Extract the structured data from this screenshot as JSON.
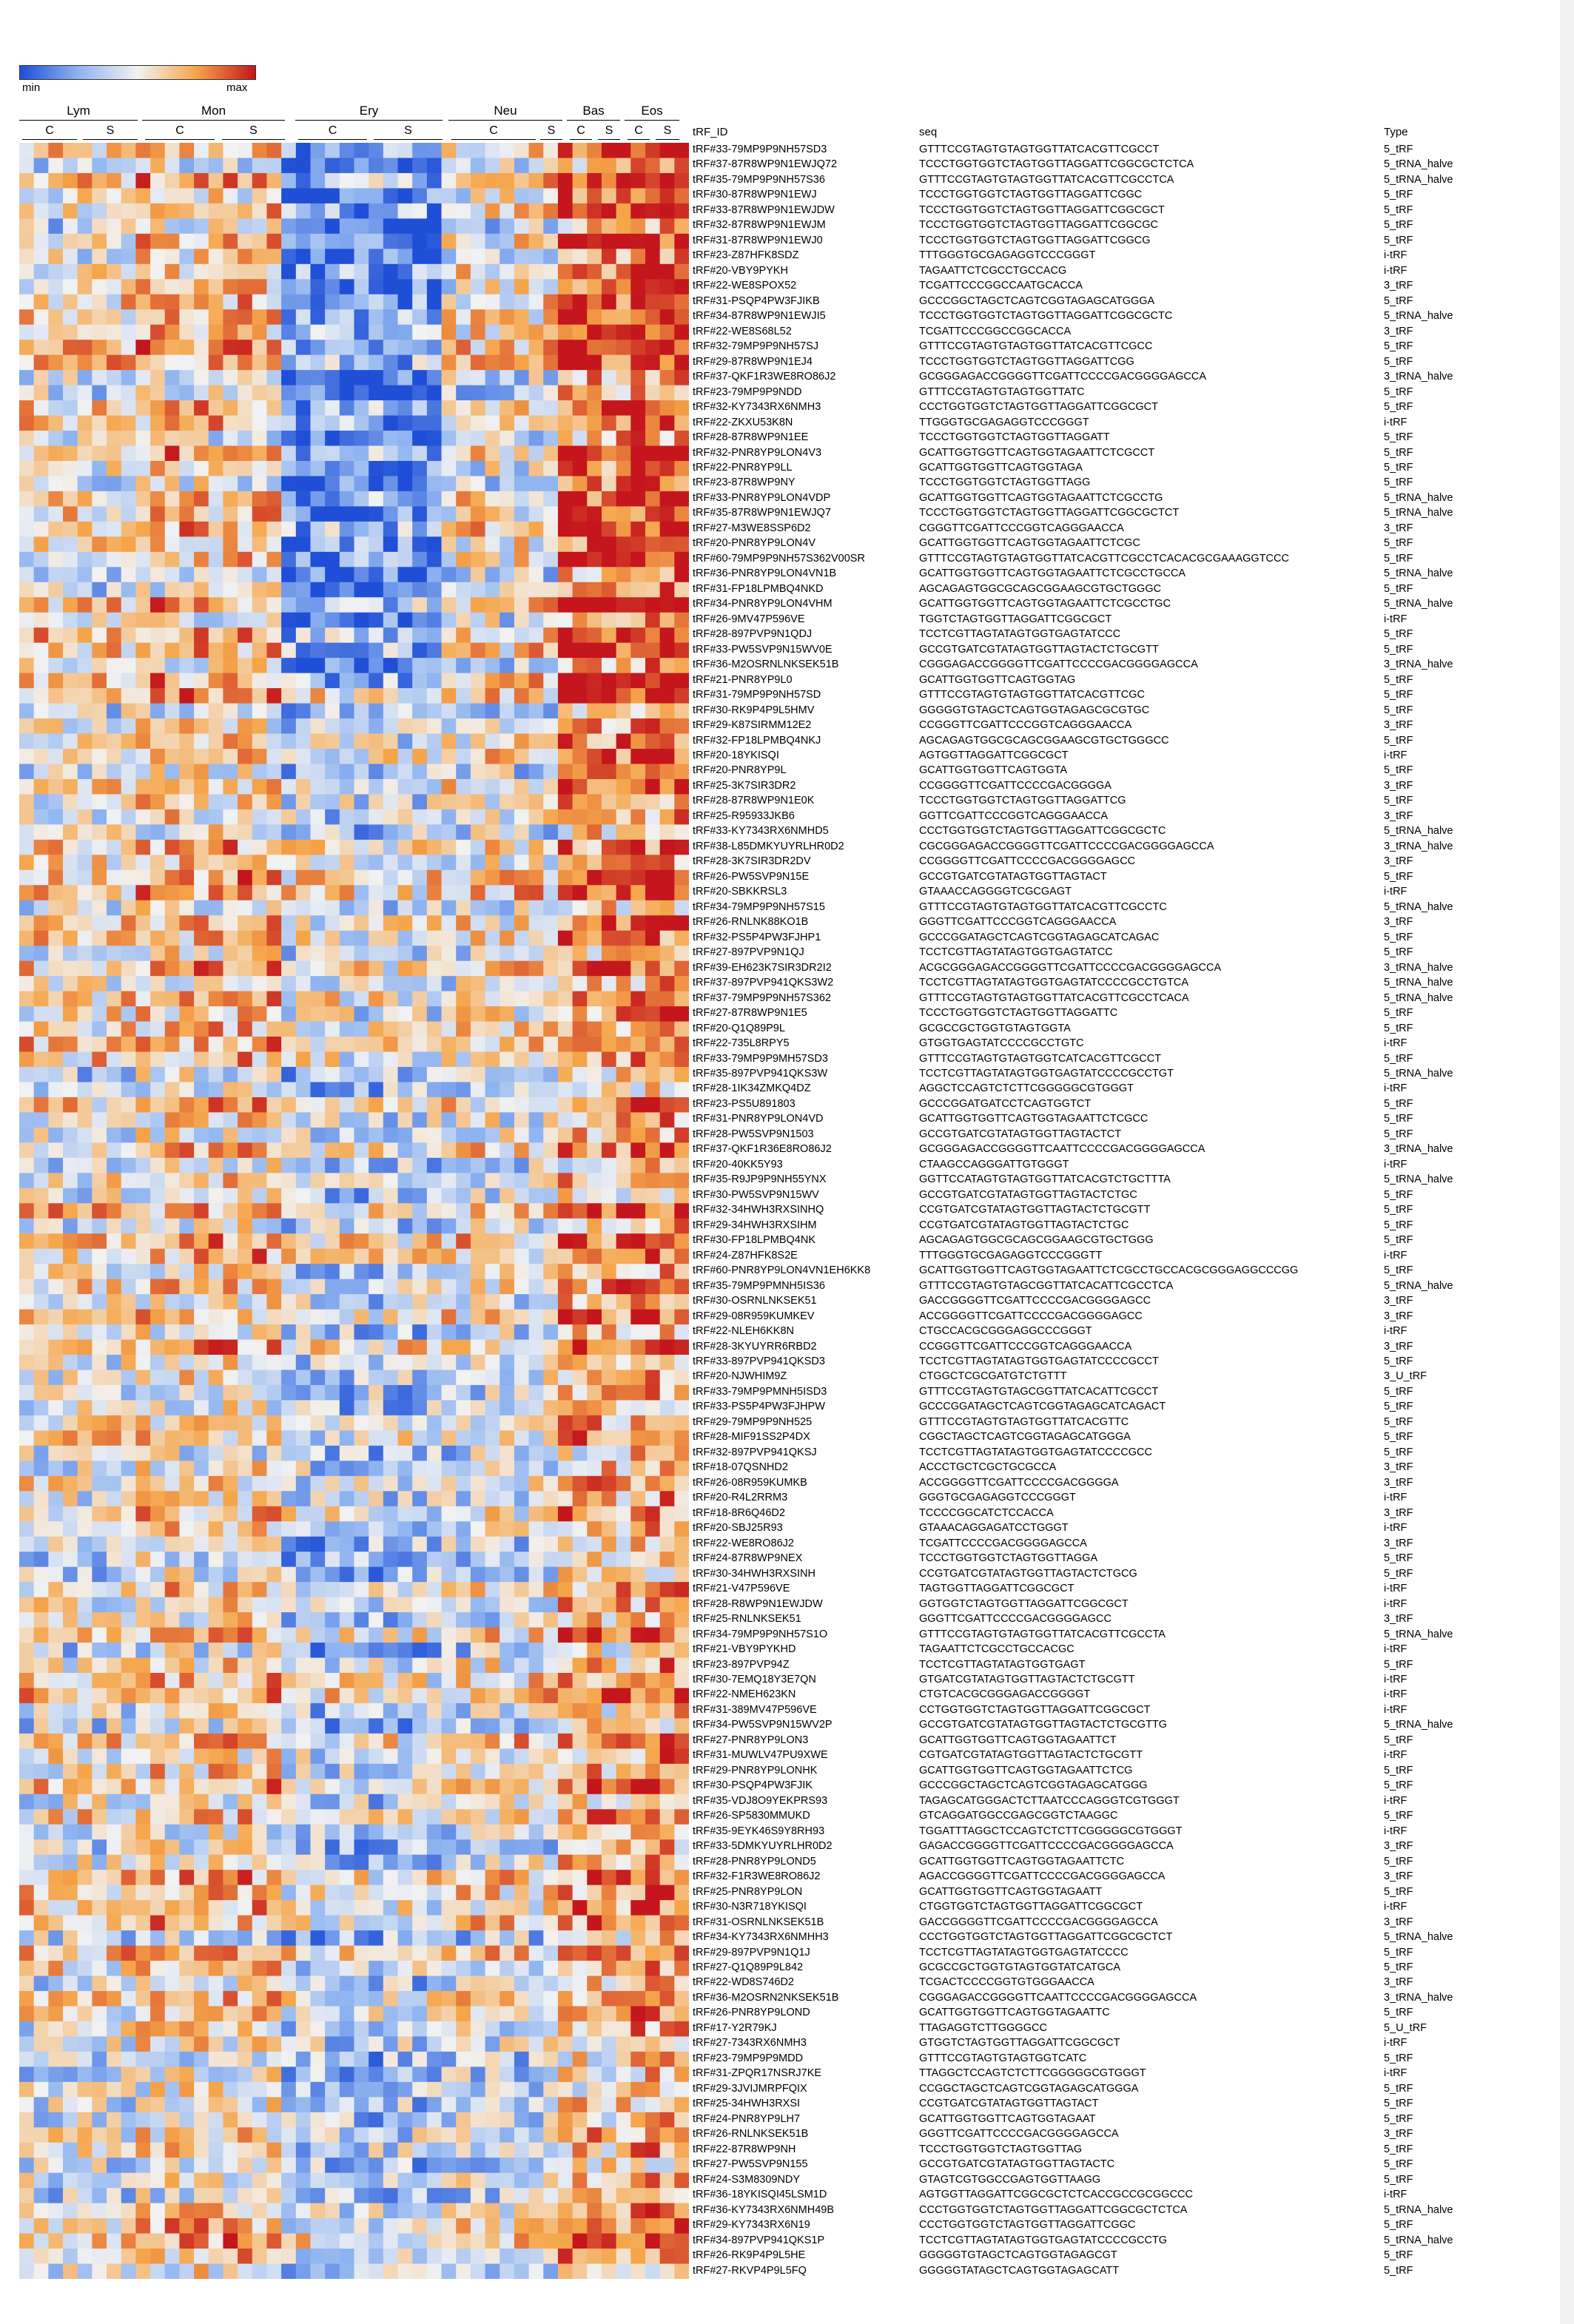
{
  "chart_data": {
    "type": "heatmap",
    "title": "",
    "legend": {
      "min_label": "min",
      "max_label": "max",
      "colors": [
        "#1f4fd6",
        "#8fb4f0",
        "#f2f2f2",
        "#f5a54a",
        "#c4161c"
      ]
    },
    "groups": [
      {
        "label": "Lym",
        "subgroups": [
          "C",
          "S"
        ]
      },
      {
        "label": "Mon",
        "subgroups": [
          "C",
          "S"
        ]
      },
      {
        "label": "Ery",
        "subgroups": [
          "C",
          "S"
        ]
      },
      {
        "label": "Neu",
        "subgroups": [
          "C",
          "S"
        ]
      },
      {
        "label": "Bas",
        "subgroups": [
          "C",
          "S"
        ]
      },
      {
        "label": "Eos",
        "subgroups": [
          "C",
          "S"
        ]
      }
    ],
    "columns": {
      "id": "tRF_ID",
      "seq": "seq",
      "type": "Type"
    },
    "rows": [
      {
        "id": "tRF#33-79MP9P9NH57SD3",
        "seq": "GTTTCCGTAGTGTAGTGGTTATCACGTTCGCCT",
        "type": "5_tRF"
      },
      {
        "id": "tRF#37-87R8WP9N1EWJQ72",
        "seq": "TCCCTGGTGGTCTAGTGGTTAGGATTCGGCGCTCTCA",
        "type": "5_tRNA_halve"
      },
      {
        "id": "tRF#35-79MP9P9NH57S36",
        "seq": "GTTTCCGTAGTGTAGTGGTTATCACGTTCGCCTCA",
        "type": "5_tRNA_halve"
      },
      {
        "id": "tRF#30-87R8WP9N1EWJ",
        "seq": "TCCCTGGTGGTCTAGTGGTTAGGATTCGGC",
        "type": "5_tRF"
      },
      {
        "id": "tRF#33-87R8WP9N1EWJDW",
        "seq": "TCCCTGGTGGTCTAGTGGTTAGGATTCGGCGCT",
        "type": "5_tRF"
      },
      {
        "id": "tRF#32-87R8WP9N1EWJM",
        "seq": "TCCCTGGTGGTCTAGTGGTTAGGATTCGGCGC",
        "type": "5_tRF"
      },
      {
        "id": "tRF#31-87R8WP9N1EWJ0",
        "seq": "TCCCTGGTGGTCTAGTGGTTAGGATTCGGCG",
        "type": "5_tRF"
      },
      {
        "id": "tRF#23-Z87HFK8SDZ",
        "seq": "TTTGGGTGCGAGAGGTCCCGGGT",
        "type": "i-tRF"
      },
      {
        "id": "tRF#20-VBY9PYKH",
        "seq": "TAGAATTCTCGCCTGCCACG",
        "type": "i-tRF"
      },
      {
        "id": "tRF#22-WE8SPOX52",
        "seq": "TCGATTCCCGGCCAATGCACCA",
        "type": "3_tRF"
      },
      {
        "id": "tRF#31-PSQP4PW3FJIKB",
        "seq": "GCCCGGCTAGCTCAGTCGGTAGAGCATGGGA",
        "type": "5_tRF"
      },
      {
        "id": "tRF#34-87R8WP9N1EWJI5",
        "seq": "TCCCTGGTGGTCTAGTGGTTAGGATTCGGCGCTC",
        "type": "5_tRNA_halve"
      },
      {
        "id": "tRF#22-WE8S68L52",
        "seq": "TCGATTCCCGGCCGGCACCA",
        "type": "3_tRF"
      },
      {
        "id": "tRF#32-79MP9P9NH57SJ",
        "seq": "GTTTCCGTAGTGTAGTGGTTATCACGTTCGCC",
        "type": "5_tRF"
      },
      {
        "id": "tRF#29-87R8WP9N1EJ4",
        "seq": "TCCCTGGTGGTCTAGTGGTTAGGATTCGG",
        "type": "5_tRF"
      },
      {
        "id": "tRF#37-QKF1R3WE8RO86J2",
        "seq": "GCGGGAGACCGGGGTTCGATTCCCCGACGGGGAGCCA",
        "type": "3_tRNA_halve"
      },
      {
        "id": "tRF#23-79MP9P9NDD",
        "seq": "GTTTCCGTAGTGTAGTGGTTATC",
        "type": "5_tRF"
      },
      {
        "id": "tRF#32-KY7343RX6NMH3",
        "seq": "CCCTGGTGGTCTAGTGGTTAGGATTCGGCGCT",
        "type": "5_tRF"
      },
      {
        "id": "tRF#22-ZKXU53K8N",
        "seq": "TTGGGTGCGAGAGGTCCCGGGT",
        "type": "i-tRF"
      },
      {
        "id": "tRF#28-87R8WP9N1EE",
        "seq": "TCCCTGGTGGTCTAGTGGTTAGGATT",
        "type": "5_tRF"
      },
      {
        "id": "tRF#32-PNR8YP9LON4V3",
        "seq": "GCATTGGTGGTTCAGTGGTAGAATTCTCGCCT",
        "type": "5_tRF"
      },
      {
        "id": "tRF#22-PNR8YP9LL",
        "seq": "GCATTGGTGGTTCAGTGGTAGA",
        "type": "5_tRF"
      },
      {
        "id": "tRF#23-87R8WP9NY",
        "seq": "TCCCTGGTGGTCTAGTGGTTAGG",
        "type": "5_tRF"
      },
      {
        "id": "tRF#33-PNR8YP9LON4VDP",
        "seq": "GCATTGGTGGTTCAGTGGTAGAATTCTCGCCTG",
        "type": "5_tRNA_halve"
      },
      {
        "id": "tRF#35-87R8WP9N1EWJQ7",
        "seq": "TCCCTGGTGGTCTAGTGGTTAGGATTCGGCGCTCT",
        "type": "5_tRNA_halve"
      },
      {
        "id": "tRF#27-M3WE8SSP6D2",
        "seq": "CGGGTTCGATTCCCGGTCAGGGAACCA",
        "type": "3_tRF"
      },
      {
        "id": "tRF#20-PNR8YP9LON4V",
        "seq": "GCATTGGTGGTTCAGTGGTAGAATTCTCGC",
        "type": "5_tRF"
      },
      {
        "id": "tRF#60-79MP9P9NH57S362V00SR",
        "seq": "GTTTCCGTAGTGTAGTGGTTATCACGTTCGCCTCACACGCGAAAGGTCCC",
        "type": "5_tRF"
      },
      {
        "id": "tRF#36-PNR8YP9LON4VN1B",
        "seq": "GCATTGGTGGTTCAGTGGTAGAATTCTCGCCTGCCA",
        "type": "5_tRNA_halve"
      },
      {
        "id": "tRF#31-FP18LPMBQ4NKD",
        "seq": "AGCAGAGTGGCGCAGCGGAAGCGTGCTGGGC",
        "type": "5_tRF"
      },
      {
        "id": "tRF#34-PNR8YP9LON4VHM",
        "seq": "GCATTGGTGGTTCAGTGGTAGAATTCTCGCCTGC",
        "type": "5_tRNA_halve"
      },
      {
        "id": "tRF#26-9MV47P596VE",
        "seq": "TGGTCTAGTGGTTAGGATTCGGCGCT",
        "type": "i-tRF"
      },
      {
        "id": "tRF#28-897PVP9N1QDJ",
        "seq": "TCCTCGTTAGTATAGTGGTGAGTATCCC",
        "type": "5_tRF"
      },
      {
        "id": "tRF#33-PW5SVP9N15WV0E",
        "seq": "GCCGTGATCGTATAGTGGTTAGTACTCTGCGTT",
        "type": "5_tRF"
      },
      {
        "id": "tRF#36-M2OSRNLNKSEK51B",
        "seq": "CGGGAGACCGGGGTTCGATTCCCCGACGGGGAGCCA",
        "type": "3_tRNA_halve"
      },
      {
        "id": "tRF#21-PNR8YP9L0",
        "seq": "GCATTGGTGGTTCAGTGGTAG",
        "type": "5_tRF"
      },
      {
        "id": "tRF#31-79MP9P9NH57SD",
        "seq": "GTTTCCGTAGTGTAGTGGTTATCACGTTCGC",
        "type": "5_tRF"
      },
      {
        "id": "tRF#30-RK9P4P9L5HMV",
        "seq": "GGGGGTGTAGCTCAGTGGTAGAGCGCGTGC",
        "type": "5_tRF"
      },
      {
        "id": "tRF#29-K87SIRMM12E2",
        "seq": "CCGGGTTCGATTCCCGGTCAGGGAACCA",
        "type": "3_tRF"
      },
      {
        "id": "tRF#32-FP18LPMBQ4NKJ",
        "seq": "AGCAGAGTGGCGCAGCGGAAGCGTGCTGGGCC",
        "type": "5_tRF"
      },
      {
        "id": "tRF#20-18YKISQI",
        "seq": "AGTGGTTAGGATTCGGCGCT",
        "type": "i-tRF"
      },
      {
        "id": "tRF#20-PNR8YP9L",
        "seq": "GCATTGGTGGTTCAGTGGTA",
        "type": "5_tRF"
      },
      {
        "id": "tRF#25-3K7SIR3DR2",
        "seq": "CCGGGGTTCGATTCCCCGACGGGGA",
        "type": "3_tRF"
      },
      {
        "id": "tRF#28-87R8WP9N1E0K",
        "seq": "TCCCTGGTGGTCTAGTGGTTAGGATTCG",
        "type": "5_tRF"
      },
      {
        "id": "tRF#25-R95933JKB6",
        "seq": "GGTTCGATTCCCGGTCAGGGAACCA",
        "type": "3_tRF"
      },
      {
        "id": "tRF#33-KY7343RX6NMHD5",
        "seq": "CCCTGGTGGTCTAGTGGTTAGGATTCGGCGCTC",
        "type": "5_tRNA_halve"
      },
      {
        "id": "tRF#38-L85DMKYUYRLHR0D2",
        "seq": "CGCGGGAGACCGGGGTTCGATTCCCCGACGGGGAGCCA",
        "type": "3_tRNA_halve"
      },
      {
        "id": "tRF#28-3K7SIR3DR2DV",
        "seq": "CCGGGGTTCGATTCCCCGACGGGGAGCC",
        "type": "3_tRF"
      },
      {
        "id": "tRF#26-PW5SVP9N15E",
        "seq": "GCCGTGATCGTATAGTGGTTAGTACT",
        "type": "5_tRF"
      },
      {
        "id": "tRF#20-SBKKRSL3",
        "seq": "GTAAACCAGGGGTCGCGAGT",
        "type": "i-tRF"
      },
      {
        "id": "tRF#34-79MP9P9NH57S15",
        "seq": "GTTTCCGTAGTGTAGTGGTTATCACGTTCGCCTC",
        "type": "5_tRNA_halve"
      },
      {
        "id": "tRF#26-RNLNK88KO1B",
        "seq": "GGGTTCGATTCCCGGTCAGGGAACCA",
        "type": "3_tRF"
      },
      {
        "id": "tRF#32-PS5P4PW3FJHP1",
        "seq": "GCCCGGATAGCTCAGTCGGTAGAGCATCAGAC",
        "type": "5_tRF"
      },
      {
        "id": "tRF#27-897PVP9N1QJ",
        "seq": "TCCTCGTTAGTATAGTGGTGAGTATCC",
        "type": "5_tRF"
      },
      {
        "id": "tRF#39-EH623K7SIR3DR2I2",
        "seq": "ACGCGGGAGACCGGGGTTCGATTCCCCGACGGGGAGCCA",
        "type": "3_tRNA_halve"
      },
      {
        "id": "tRF#37-897PVP941QKS3W2",
        "seq": "TCCTCGTTAGTATAGTGGTGAGTATCCCCGCCTGTCA",
        "type": "5_tRNA_halve"
      },
      {
        "id": "tRF#37-79MP9P9NH57S362",
        "seq": "GTTTCCGTAGTGTAGTGGTTATCACGTTCGCCTCACA",
        "type": "5_tRNA_halve"
      },
      {
        "id": "tRF#27-87R8WP9N1E5",
        "seq": "TCCCTGGTGGTCTAGTGGTTAGGATTC",
        "type": "5_tRF"
      },
      {
        "id": "tRF#20-Q1Q89P9L",
        "seq": "GCGCCGCTGGTGTAGTGGTA",
        "type": "5_tRF"
      },
      {
        "id": "tRF#22-735L8RPY5",
        "seq": "GTGGTGAGTATCCCCGCCTGTC",
        "type": "i-tRF"
      },
      {
        "id": "tRF#33-79MP9P9MH57SD3",
        "seq": "GTTTCCGTAGTGTAGTGGTCATCACGTTCGCCT",
        "type": "5_tRF"
      },
      {
        "id": "tRF#35-897PVP941QKS3W",
        "seq": "TCCTCGTTAGTATAGTGGTGAGTATCCCCGCCTGT",
        "type": "5_tRNA_halve"
      },
      {
        "id": "tRF#28-1IK34ZMKQ4DZ",
        "seq": "AGGCTCCAGTCTCTTCGGGGGCGTGGGT",
        "type": "i-tRF"
      },
      {
        "id": "tRF#23-PS5U891803",
        "seq": "GCCCGGATGATCCTCAGTGGTCT",
        "type": "5_tRF"
      },
      {
        "id": "tRF#31-PNR8YP9LON4VD",
        "seq": "GCATTGGTGGTTCAGTGGTAGAATTCTCGCC",
        "type": "5_tRF"
      },
      {
        "id": "tRF#28-PW5SVP9N1503",
        "seq": "GCCGTGATCGTATAGTGGTTAGTACTCT",
        "type": "5_tRF"
      },
      {
        "id": "tRF#37-QKF1R36E8RO86J2",
        "seq": "GCGGGAGACCGGGGTTCAATTCCCCGACGGGGAGCCA",
        "type": "3_tRNA_halve"
      },
      {
        "id": "tRF#20-40KK5Y93",
        "seq": "CTAAGCCAGGGATTGTGGGT",
        "type": "i-tRF"
      },
      {
        "id": "tRF#35-R9JP9P9NH55YNX",
        "seq": "GGTTCCATAGTGTAGTGGTTATCACGTCTGCTTTA",
        "type": "5_tRNA_halve"
      },
      {
        "id": "tRF#30-PW5SVP9N15WV",
        "seq": "GCCGTGATCGTATAGTGGTTAGTACTCTGC",
        "type": "5_tRF"
      },
      {
        "id": "tRF#32-34HWH3RXSINHQ",
        "seq": "CCGTGATCGTATAGTGGTTAGTACTCTGCGTT",
        "type": "5_tRF"
      },
      {
        "id": "tRF#29-34HWH3RXSIHM",
        "seq": "CCGTGATCGTATAGTGGTTAGTACTCTGC",
        "type": "5_tRF"
      },
      {
        "id": "tRF#30-FP18LPMBQ4NK",
        "seq": "AGCAGAGTGGCGCAGCGGAAGCGTGCTGGG",
        "type": "5_tRF"
      },
      {
        "id": "tRF#24-Z87HFK8S2E",
        "seq": "TTTGGGTGCGAGAGGTCCCGGGTT",
        "type": "i-tRF"
      },
      {
        "id": "tRF#60-PNR8YP9LON4VN1EH6KK8",
        "seq": "GCATTGGTGGTTCAGTGGTAGAATTCTCGCCTGCCACGCGGGAGGCCCGG",
        "type": "5_tRF"
      },
      {
        "id": "tRF#35-79MP9PMNH5IS36",
        "seq": "GTTTCCGTAGTGTAGCGGTTATCACATTCGCCTCA",
        "type": "5_tRNA_halve"
      },
      {
        "id": "tRF#30-OSRNLNKSEK51",
        "seq": "GACCGGGGTTCGATTCCCCGACGGGGAGCC",
        "type": "3_tRF"
      },
      {
        "id": "tRF#29-08R959KUMKEV",
        "seq": "ACCGGGGTTCGATTCCCCGACGGGGAGCC",
        "type": "3_tRF"
      },
      {
        "id": "tRF#22-NLEH6KK8N",
        "seq": "CTGCCACGCGGGAGGCCCGGGT",
        "type": "i-tRF"
      },
      {
        "id": "tRF#28-3KYUYRR6RBD2",
        "seq": "CCGGGTTCGATTCCCGGTCAGGGAACCA",
        "type": "3_tRF"
      },
      {
        "id": "tRF#33-897PVP941QKSD3",
        "seq": "TCCTCGTTAGTATAGTGGTGAGTATCCCCGCCT",
        "type": "5_tRF"
      },
      {
        "id": "tRF#20-NJWHIM9Z",
        "seq": "CTGGCTCGCGATGTCTGTTT",
        "type": "3_U_tRF"
      },
      {
        "id": "tRF#33-79MP9PMNH5ISD3",
        "seq": "GTTTCCGTAGTGTAGCGGTTATCACATTCGCCT",
        "type": "5_tRF"
      },
      {
        "id": "tRF#33-PS5P4PW3FJHPW",
        "seq": "GCCCGGATAGCTCAGTCGGTAGAGCATCAGACT",
        "type": "5_tRF"
      },
      {
        "id": "tRF#29-79MP9P9NH525",
        "seq": "GTTTCCGTAGTGTAGTGGTTATCACGTTC",
        "type": "5_tRF"
      },
      {
        "id": "tRF#28-MIF91SS2P4DX",
        "seq": "CGGCTAGCTCAGTCGGTAGAGCATGGGA",
        "type": "5_tRF"
      },
      {
        "id": "tRF#32-897PVP941QKSJ",
        "seq": "TCCTCGTTAGTATAGTGGTGAGTATCCCCGCC",
        "type": "5_tRF"
      },
      {
        "id": "tRF#18-07QSNHD2",
        "seq": "ACCCTGCTCGCTGCGCCA",
        "type": "3_tRF"
      },
      {
        "id": "tRF#26-08R959KUMKB",
        "seq": "ACCGGGGTTCGATTCCCCGACGGGGA",
        "type": "3_tRF"
      },
      {
        "id": "tRF#20-R4L2RRM3",
        "seq": "GGGTGCGAGAGGTCCCGGGT",
        "type": "i-tRF"
      },
      {
        "id": "tRF#18-8R6Q46D2",
        "seq": "TCCCCGGCATCTCCACCA",
        "type": "3_tRF"
      },
      {
        "id": "tRF#20-SBJ25R93",
        "seq": "GTAAACAGGAGATCCTGGGT",
        "type": "i-tRF"
      },
      {
        "id": "tRF#22-WE8RO86J2",
        "seq": "TCGATTCCCCGACGGGGAGCCA",
        "type": "3_tRF"
      },
      {
        "id": "tRF#24-87R8WP9NEX",
        "seq": "TCCCTGGTGGTCTAGTGGTTAGGA",
        "type": "5_tRF"
      },
      {
        "id": "tRF#30-34HWH3RXSINH",
        "seq": "CCGTGATCGTATAGTGGTTAGTACTCTGCG",
        "type": "5_tRF"
      },
      {
        "id": "tRF#21-V47P596VE",
        "seq": "TAGTGGTTAGGATTCGGCGCT",
        "type": "i-tRF"
      },
      {
        "id": "tRF#28-R8WP9N1EWJDW",
        "seq": "GGTGGTCTAGTGGTTAGGATTCGGCGCT",
        "type": "i-tRF"
      },
      {
        "id": "tRF#25-RNLNKSEK51",
        "seq": "GGGTTCGATTCCCCGACGGGGAGCC",
        "type": "3_tRF"
      },
      {
        "id": "tRF#34-79MP9P9NH57S1O",
        "seq": "GTTTCCGTAGTGTAGTGGTTATCACGTTCGCCTA",
        "type": "5_tRNA_halve"
      },
      {
        "id": "tRF#21-VBY9PYKHD",
        "seq": "TAGAATTCTCGCCTGCCACGC",
        "type": "i-tRF"
      },
      {
        "id": "tRF#23-897PVP94Z",
        "seq": "TCCTCGTTAGTATAGTGGTGAGT",
        "type": "5_tRF"
      },
      {
        "id": "tRF#30-7EMQ18Y3E7QN",
        "seq": "GTGATCGTATAGTGGTTAGTACTCTGCGTT",
        "type": "i-tRF"
      },
      {
        "id": "tRF#22-NMEH623KN",
        "seq": "CTGTCACGCGGGAGACCGGGGT",
        "type": "i-tRF"
      },
      {
        "id": "tRF#31-389MV47P596VE",
        "seq": "CCTGGTGGTCTAGTGGTTAGGATTCGGCGCT",
        "type": "i-tRF"
      },
      {
        "id": "tRF#34-PW5SVP9N15WV2P",
        "seq": "GCCGTGATCGTATAGTGGTTAGTACTCTGCGTTG",
        "type": "5_tRNA_halve"
      },
      {
        "id": "tRF#27-PNR8YP9LON3",
        "seq": "GCATTGGTGGTTCAGTGGTAGAATTCT",
        "type": "5_tRF"
      },
      {
        "id": "tRF#31-MUWLV47PU9XWE",
        "seq": "CGTGATCGTATAGTGGTTAGTACTCTGCGTT",
        "type": "i-tRF"
      },
      {
        "id": "tRF#29-PNR8YP9LONHK",
        "seq": "GCATTGGTGGTTCAGTGGTAGAATTCTCG",
        "type": "5_tRF"
      },
      {
        "id": "tRF#30-PSQP4PW3FJIK",
        "seq": "GCCCGGCTAGCTCAGTCGGTAGAGCATGGG",
        "type": "5_tRF"
      },
      {
        "id": "tRF#35-VDJ8O9YEKPRS93",
        "seq": "TAGAGCATGGGACTCTTAATCCCAGGGTCGTGGGT",
        "type": "i-tRF"
      },
      {
        "id": "tRF#26-SP5830MMUKD",
        "seq": "GTCAGGATGGCCGAGCGGTCTAAGGC",
        "type": "5_tRF"
      },
      {
        "id": "tRF#35-9EYK46S9Y8RH93",
        "seq": "TGGATTTAGGCTCCAGTCTCTTCGGGGGCGTGGGT",
        "type": "i-tRF"
      },
      {
        "id": "tRF#33-5DMKYUYRLHR0D2",
        "seq": "GAGACCGGGGTTCGATTCCCCGACGGGGAGCCA",
        "type": "3_tRF"
      },
      {
        "id": "tRF#28-PNR8YP9LOND5",
        "seq": "GCATTGGTGGTTCAGTGGTAGAATTCTC",
        "type": "5_tRF"
      },
      {
        "id": "tRF#32-F1R3WE8RO86J2",
        "seq": "AGACCGGGGTTCGATTCCCCGACGGGGAGCCA",
        "type": "3_tRF"
      },
      {
        "id": "tRF#25-PNR8YP9LON",
        "seq": "GCATTGGTGGTTCAGTGGTAGAATT",
        "type": "5_tRF"
      },
      {
        "id": "tRF#30-N3R718YKISQI",
        "seq": "CTGGTGGTCTAGTGGTTAGGATTCGGCGCT",
        "type": "i-tRF"
      },
      {
        "id": "tRF#31-OSRNLNKSEK51B",
        "seq": "GACCGGGGTTCGATTCCCCGACGGGGAGCCA",
        "type": "3_tRF"
      },
      {
        "id": "tRF#34-KY7343RX6NMHH3",
        "seq": "CCCTGGTGGTCTAGTGGTTAGGATTCGGCGCTCT",
        "type": "5_tRNA_halve"
      },
      {
        "id": "tRF#29-897PVP9N1Q1J",
        "seq": "TCCTCGTTAGTATAGTGGTGAGTATCCCC",
        "type": "5_tRF"
      },
      {
        "id": "tRF#27-Q1Q89P9L842",
        "seq": "GCGCCGCTGGTGTAGTGGTATCATGCA",
        "type": "5_tRF"
      },
      {
        "id": "tRF#22-WD8S746D2",
        "seq": "TCGACTCCCCGGTGTGGGAACCA",
        "type": "3_tRF"
      },
      {
        "id": "tRF#36-M2OSRN2NKSEK51B",
        "seq": "CGGGAGACCGGGGTTCAATTCCCCGACGGGGAGCCA",
        "type": "3_tRNA_halve"
      },
      {
        "id": "tRF#26-PNR8YP9LOND",
        "seq": "GCATTGGTGGTTCAGTGGTAGAATTC",
        "type": "5_tRF"
      },
      {
        "id": "tRF#17-Y2R79KJ",
        "seq": "TTAGAGGTCTTGGGGCC",
        "type": "5_U_tRF"
      },
      {
        "id": "tRF#27-7343RX6NMH3",
        "seq": "GTGGTCTAGTGGTTAGGATTCGGCGCT",
        "type": "i-tRF"
      },
      {
        "id": "tRF#23-79MP9P9MDD",
        "seq": "GTTTCCGTAGTGTAGTGGTCATC",
        "type": "5_tRF"
      },
      {
        "id": "tRF#31-ZPQR17NSRJ7KE",
        "seq": "TTAGGCTCCAGTCTCTTCGGGGGCGTGGGT",
        "type": "i-tRF"
      },
      {
        "id": "tRF#29-3JVIJMRPFQIX",
        "seq": "CCGGCTAGCTCAGTCGGTAGAGCATGGGA",
        "type": "5_tRF"
      },
      {
        "id": "tRF#25-34HWH3RXSI",
        "seq": "CCGTGATCGTATAGTGGTTAGTACT",
        "type": "5_tRF"
      },
      {
        "id": "tRF#24-PNR8YP9LH7",
        "seq": "GCATTGGTGGTTCAGTGGTAGAAT",
        "type": "5_tRF"
      },
      {
        "id": "tRF#26-RNLNKSEK51B",
        "seq": "GGGTTCGATTCCCCGACGGGGAGCCA",
        "type": "3_tRF"
      },
      {
        "id": "tRF#22-87R8WP9NH",
        "seq": "TCCCTGGTGGTCTAGTGGTTAG",
        "type": "5_tRF"
      },
      {
        "id": "tRF#27-PW5SVP9N155",
        "seq": "GCCGTGATCGTATAGTGGTTAGTACTC",
        "type": "5_tRF"
      },
      {
        "id": "tRF#24-S3M8309NDY",
        "seq": "GTAGTCGTGGCCGAGTGGTTAAGG",
        "type": "5_tRF"
      },
      {
        "id": "tRF#36-18YKISQI45LSM1D",
        "seq": "AGTGGTTAGGATTCGGCGCTCTCACCGCCGCGGCCC",
        "type": "i-tRF"
      },
      {
        "id": "tRF#36-KY7343RX6NMH49B",
        "seq": "CCCTGGTGGTCTAGTGGTTAGGATTCGGCGCTCTCA",
        "type": "5_tRNA_halve"
      },
      {
        "id": "tRF#29-KY7343RX6N19",
        "seq": "CCCTGGTGGTCTAGTGGTTAGGATTCGGC",
        "type": "5_tRF"
      },
      {
        "id": "tRF#34-897PVP941QKS1P",
        "seq": "TCCTCGTTAGTATAGTGGTGAGTATCCCCGCCTG",
        "type": "5_tRNA_halve"
      },
      {
        "id": "tRF#26-RK9P4P9L5HE",
        "seq": "GGGGGTGTAGCTCAGTGGTAGAGCGT",
        "type": "5_tRF"
      },
      {
        "id": "tRF#27-RKVP4P9L5FQ",
        "seq": "GGGGGTATAGCTCAGTGGTAGAGCATT",
        "type": "5_tRF"
      }
    ]
  }
}
